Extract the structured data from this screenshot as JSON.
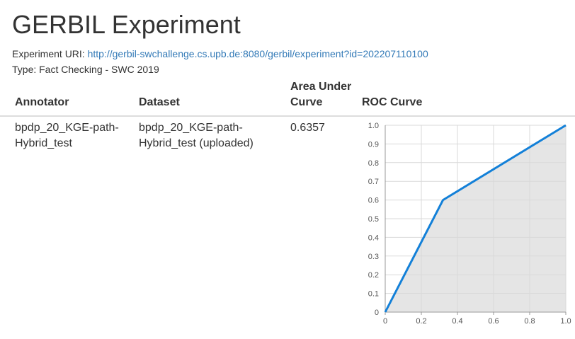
{
  "page": {
    "title": "GERBIL Experiment",
    "uri_label": "Experiment URI:",
    "uri_link": "http://gerbil-swchallenge.cs.upb.de:8080/gerbil/experiment?id=202207110100",
    "type_text": "Type: Fact Checking - SWC 2019"
  },
  "table": {
    "headers": {
      "annotator": "Annotator",
      "dataset": "Dataset",
      "auc_line1": "Area Under",
      "auc_line2": "Curve",
      "roc": "ROC Curve"
    },
    "rows": [
      {
        "annotator_line1": "bpdp_20_KGE-path-",
        "annotator_line2": "Hybrid_test",
        "dataset_line1": "bpdp_20_KGE-path-",
        "dataset_line2": "Hybrid_test (uploaded)",
        "auc": "0.6357"
      }
    ]
  },
  "chart_data": {
    "type": "area",
    "x": [
      0,
      0.32,
      1.0
    ],
    "y": [
      0,
      0.6,
      1.0
    ],
    "xlim": [
      0,
      1
    ],
    "ylim": [
      0,
      1
    ],
    "x_ticks": [
      "0",
      "0.2",
      "0.4",
      "0.6",
      "0.8",
      "1.0"
    ],
    "y_ticks": [
      "0",
      "0.1",
      "0.2",
      "0.3",
      "0.4",
      "0.5",
      "0.6",
      "0.7",
      "0.8",
      "0.9",
      "1.0"
    ],
    "grid": true,
    "line_color": "#1380d8",
    "fill_color": "#e5e5e5",
    "grid_color": "#d9d9d9"
  }
}
